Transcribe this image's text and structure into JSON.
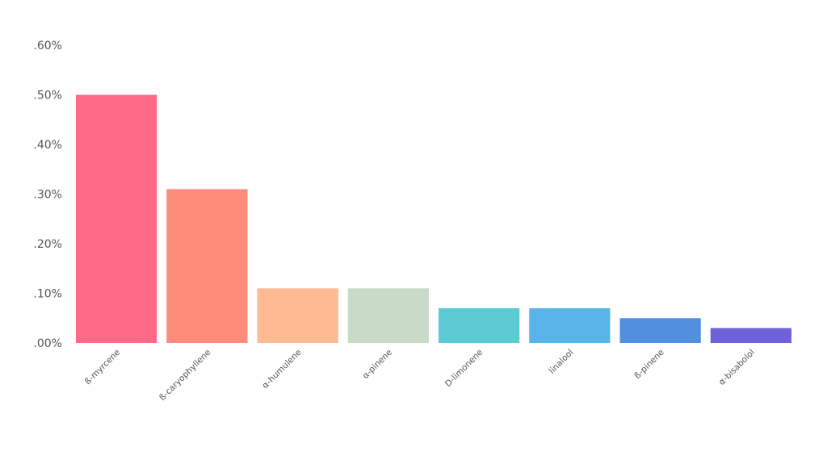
{
  "chart_data": {
    "type": "bar",
    "categories": [
      "ß-myrcene",
      "ß-caryophyllene",
      "α-humulene",
      "α-pinene",
      "D-limonene",
      "linalool",
      "ß-pinene",
      "α-bisabolol"
    ],
    "values": [
      0.5,
      0.31,
      0.11,
      0.11,
      0.07,
      0.07,
      0.05,
      0.03
    ],
    "colors": [
      "#ff6b86",
      "#fd8c7b",
      "#ffb993",
      "#c7dbc8",
      "#5ccad2",
      "#57b5ea",
      "#528fde",
      "#7061d9"
    ],
    "ylim": [
      0,
      0.6
    ],
    "y_ticks": [
      0,
      0.1,
      0.2,
      0.3,
      0.4,
      0.5,
      0.6
    ],
    "y_tick_labels": [
      ".00%",
      ".10%",
      ".20%",
      ".30%",
      ".40%",
      ".50%",
      ".60%"
    ],
    "title": "",
    "xlabel": "",
    "ylabel": "",
    "grid": false,
    "legend": "none"
  }
}
